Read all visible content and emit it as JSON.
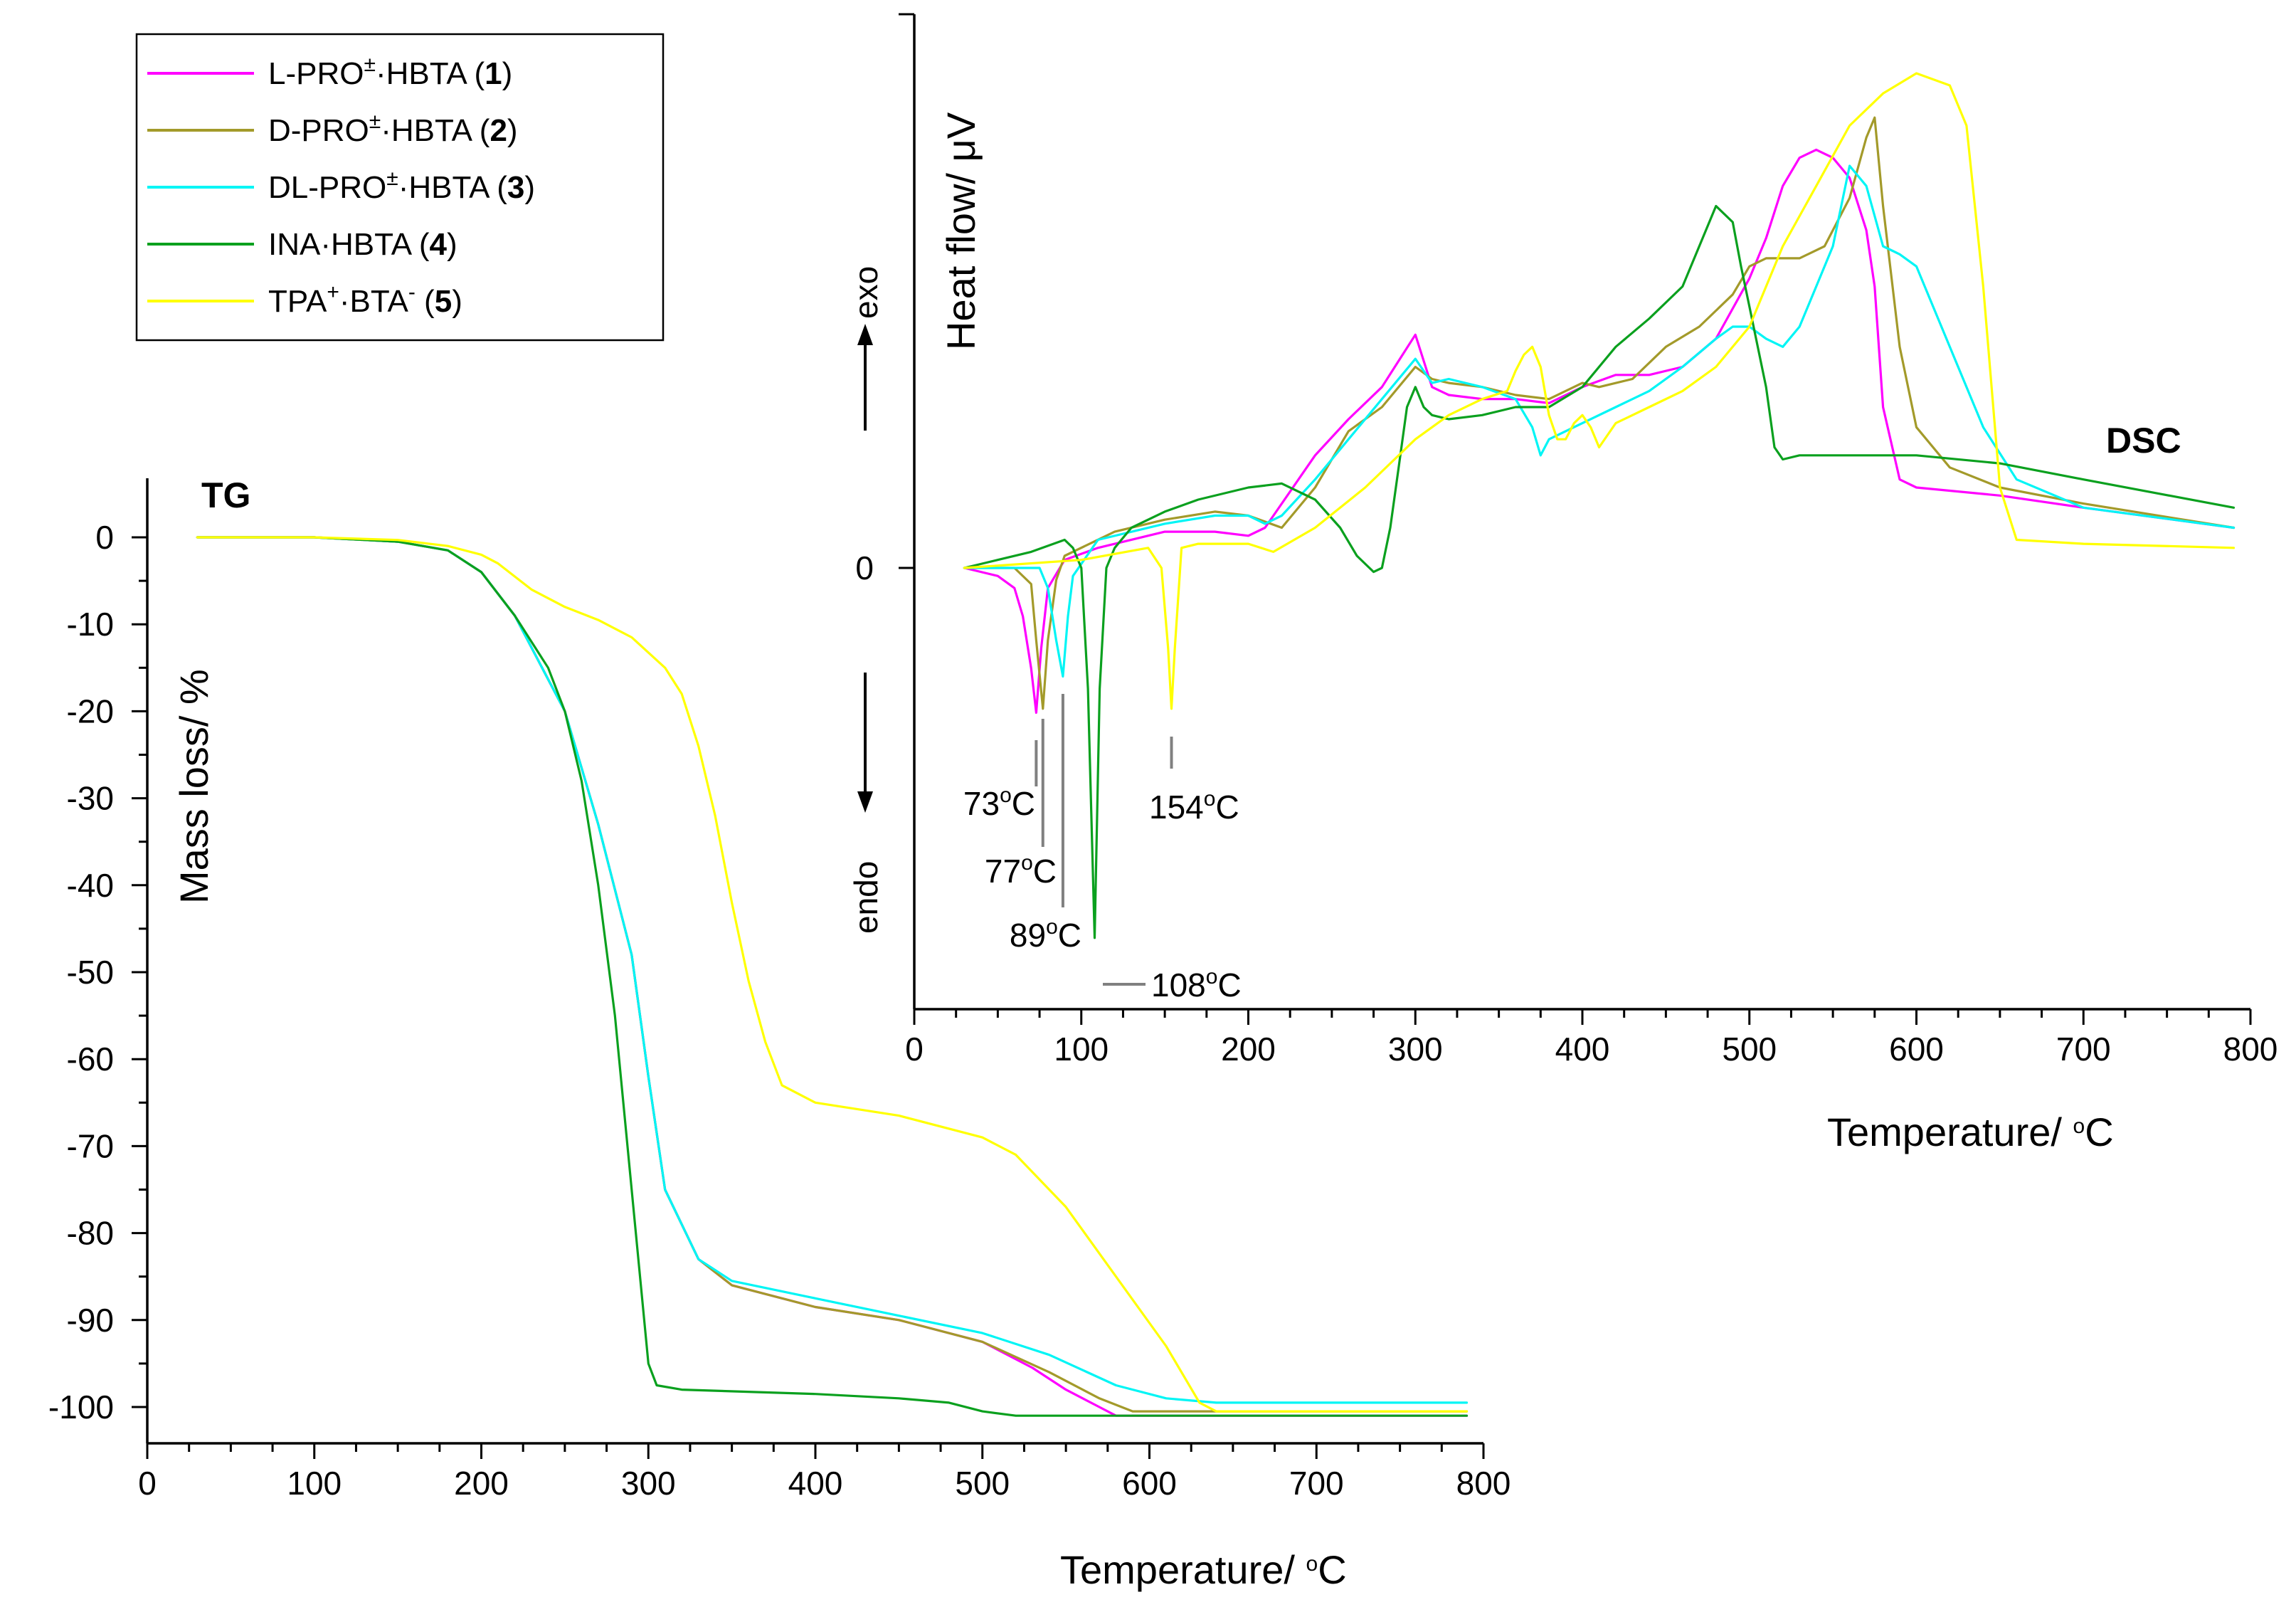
{
  "legend": {
    "entries": [
      {
        "prefix": "L-PRO",
        "sup": "±",
        "mid": "·HBTA (",
        "num": "1",
        "suffix": ")",
        "color": "#ff00ff"
      },
      {
        "prefix": "D-PRO",
        "sup": "±",
        "mid": "·HBTA (",
        "num": "2",
        "suffix": ")",
        "color": "#a39a2a"
      },
      {
        "prefix": "DL-PRO",
        "sup": "±",
        "mid": "·HBTA (",
        "num": "3",
        "suffix": ")",
        "color": "#00f5f5"
      },
      {
        "prefix": "INA",
        "sup": "",
        "mid": "·HBTA (",
        "num": "4",
        "suffix": ")",
        "color": "#0aa01e"
      },
      {
        "prefix": "TPA",
        "sup": "+",
        "mid": "·BTA",
        "sup2": "-",
        "tail": " (",
        "num": "5",
        "suffix": ")",
        "color": "#ffff00"
      }
    ]
  },
  "chart_data": [
    {
      "type": "line",
      "title": "TG",
      "xlabel_main": "Temperature/ ",
      "xlabel_sup": "o",
      "xlabel_tail": "C",
      "ylabel": "Mass loss/ %",
      "xlim": [
        0,
        800
      ],
      "ylim": [
        -105,
        5
      ],
      "xticks": [
        0,
        100,
        200,
        300,
        400,
        500,
        600,
        700,
        800
      ],
      "yticks": [
        0,
        -10,
        -20,
        -30,
        -40,
        -50,
        -60,
        -70,
        -80,
        -90,
        -100
      ],
      "series": [
        {
          "name": "L-PRO±·HBTA (1)",
          "color": "#ff00ff",
          "x": [
            30,
            100,
            150,
            180,
            200,
            220,
            250,
            270,
            290,
            300,
            310,
            330,
            350,
            400,
            450,
            500,
            530,
            550,
            570,
            580,
            790
          ],
          "y": [
            0,
            0,
            -0.5,
            -1.5,
            -4,
            -9,
            -20,
            -33,
            -48,
            -62,
            -75,
            -83,
            -86,
            -88.5,
            -90,
            -92.5,
            -95.5,
            -98,
            -100,
            -101,
            -101
          ]
        },
        {
          "name": "D-PRO±·HBTA (2)",
          "color": "#a39a2a",
          "x": [
            30,
            100,
            150,
            180,
            200,
            220,
            250,
            270,
            290,
            300,
            310,
            330,
            350,
            400,
            450,
            500,
            540,
            570,
            590,
            600,
            790
          ],
          "y": [
            0,
            0,
            -0.5,
            -1.5,
            -4,
            -9,
            -20,
            -33,
            -48,
            -62,
            -75,
            -83,
            -86,
            -88.5,
            -90,
            -92.5,
            -96,
            -99,
            -100.5,
            -100.5,
            -100.5
          ]
        },
        {
          "name": "DL-PRO±·HBTA (3)",
          "color": "#00f5f5",
          "x": [
            30,
            100,
            150,
            180,
            200,
            220,
            250,
            270,
            290,
            300,
            310,
            330,
            350,
            400,
            450,
            500,
            540,
            580,
            610,
            640,
            790
          ],
          "y": [
            0,
            0,
            -0.5,
            -1.5,
            -4,
            -9,
            -20,
            -33,
            -48,
            -62,
            -75,
            -83,
            -85.5,
            -87.5,
            -89.5,
            -91.5,
            -94,
            -97.5,
            -99,
            -99.5,
            -99.5
          ]
        },
        {
          "name": "INA·HBTA (4)",
          "color": "#0aa01e",
          "x": [
            30,
            100,
            150,
            180,
            200,
            220,
            240,
            250,
            260,
            270,
            280,
            290,
            300,
            305,
            320,
            400,
            450,
            480,
            500,
            520,
            790
          ],
          "y": [
            0,
            0,
            -0.5,
            -1.5,
            -4,
            -9,
            -15,
            -20,
            -28,
            -40,
            -55,
            -75,
            -95,
            -97.5,
            -98,
            -98.5,
            -99,
            -99.5,
            -100.5,
            -101,
            -101
          ]
        },
        {
          "name": "TPA+·BTA- (5)",
          "color": "#ffff00",
          "x": [
            30,
            100,
            150,
            180,
            200,
            210,
            230,
            250,
            270,
            290,
            310,
            320,
            330,
            340,
            350,
            360,
            370,
            380,
            400,
            450,
            500,
            520,
            550,
            580,
            610,
            630,
            640,
            790
          ],
          "y": [
            0,
            0,
            -0.3,
            -1,
            -2,
            -3,
            -6,
            -8,
            -9.5,
            -11.5,
            -15,
            -18,
            -24,
            -32,
            -42,
            -51,
            -58,
            -63,
            -65,
            -66.5,
            -69,
            -71,
            -77,
            -85,
            -93,
            -99.5,
            -100.5,
            -100.5
          ]
        }
      ]
    },
    {
      "type": "line",
      "title": "DSC",
      "xlabel_main": "Temperature/ ",
      "xlabel_sup": "o",
      "xlabel_tail": "C",
      "ylabel": "Heat flow/ μV",
      "xlim": [
        0,
        800
      ],
      "ylim": [
        -100,
        127
      ],
      "xticks": [
        0,
        100,
        200,
        300,
        400,
        500,
        600,
        700,
        800
      ],
      "ytick_label": "0",
      "exo_label": "exo",
      "endo_label": "endo",
      "annotations": [
        {
          "temp": 73,
          "label": "73",
          "sup": "o",
          "unit": "C"
        },
        {
          "temp": 77,
          "label": "77",
          "sup": "o",
          "unit": "C"
        },
        {
          "temp": 89,
          "label": "89",
          "sup": "o",
          "unit": "C"
        },
        {
          "temp": 108,
          "label": "108",
          "sup": "o",
          "unit": "C"
        },
        {
          "temp": 154,
          "label": "154",
          "sup": "o",
          "unit": "C"
        }
      ],
      "series": [
        {
          "name": "L-PRO±·HBTA (1)",
          "color": "#ff00ff",
          "x": [
            30,
            50,
            60,
            65,
            70,
            73,
            76,
            80,
            90,
            110,
            150,
            180,
            200,
            210,
            220,
            240,
            260,
            280,
            300,
            310,
            320,
            340,
            360,
            380,
            400,
            420,
            440,
            460,
            480,
            500,
            510,
            520,
            530,
            540,
            550,
            560,
            570,
            575,
            580,
            590,
            600,
            650,
            700,
            790
          ],
          "y": [
            0,
            -2,
            -5,
            -12,
            -25,
            -36,
            -20,
            -5,
            2,
            5,
            9,
            9,
            8,
            10,
            16,
            28,
            37,
            45,
            58,
            45,
            43,
            42,
            42,
            41,
            45,
            48,
            48,
            50,
            57,
            72,
            82,
            95,
            102,
            104,
            102,
            97,
            84,
            70,
            40,
            22,
            20,
            18,
            15,
            10
          ]
        },
        {
          "name": "D-PRO±·HBTA (2)",
          "color": "#a39a2a",
          "x": [
            30,
            60,
            70,
            73,
            77,
            80,
            85,
            90,
            120,
            150,
            180,
            200,
            220,
            240,
            260,
            280,
            300,
            310,
            320,
            340,
            360,
            380,
            400,
            410,
            430,
            450,
            470,
            490,
            500,
            510,
            530,
            545,
            560,
            570,
            575,
            580,
            590,
            600,
            620,
            650,
            700,
            790
          ],
          "y": [
            0,
            0,
            -4,
            -18,
            -35,
            -18,
            -3,
            3,
            9,
            12,
            14,
            13,
            10,
            20,
            34,
            40,
            50,
            47,
            46,
            45,
            43,
            42,
            46,
            45,
            47,
            55,
            60,
            68,
            75,
            77,
            77,
            80,
            92,
            107,
            112,
            90,
            55,
            35,
            25,
            20,
            16,
            10
          ]
        },
        {
          "name": "DL-PRO±·HBTA (3)",
          "color": "#00f5f5",
          "x": [
            30,
            60,
            75,
            80,
            85,
            89,
            92,
            95,
            110,
            150,
            180,
            200,
            210,
            220,
            240,
            260,
            280,
            300,
            310,
            320,
            340,
            360,
            370,
            375,
            380,
            400,
            420,
            440,
            460,
            480,
            490,
            500,
            510,
            520,
            530,
            540,
            550,
            560,
            570,
            580,
            590,
            600,
            620,
            640,
            660,
            700,
            790
          ],
          "y": [
            0,
            0,
            0,
            -5,
            -18,
            -27,
            -12,
            -2,
            7,
            11,
            13,
            13,
            11,
            13,
            22,
            32,
            42,
            52,
            46,
            47,
            45,
            42,
            35,
            28,
            32,
            36,
            40,
            44,
            50,
            57,
            60,
            60,
            57,
            55,
            60,
            70,
            80,
            100,
            95,
            80,
            78,
            75,
            55,
            35,
            22,
            15,
            10
          ]
        },
        {
          "name": "INA·HBTA (4)",
          "color": "#0aa01e",
          "x": [
            30,
            50,
            70,
            90,
            95,
            100,
            104,
            108,
            111,
            115,
            120,
            130,
            150,
            170,
            200,
            220,
            240,
            255,
            265,
            275,
            280,
            285,
            290,
            295,
            300,
            305,
            310,
            320,
            340,
            360,
            380,
            400,
            420,
            440,
            460,
            470,
            480,
            490,
            495,
            500,
            510,
            515,
            520,
            530,
            560,
            600,
            650,
            700,
            790
          ],
          "y": [
            0,
            2,
            4,
            7,
            5,
            0,
            -30,
            -92,
            -30,
            0,
            5,
            10,
            14,
            17,
            20,
            21,
            17,
            10,
            3,
            -1,
            0,
            10,
            25,
            40,
            45,
            40,
            38,
            37,
            38,
            40,
            40,
            45,
            55,
            62,
            70,
            80,
            90,
            86,
            75,
            65,
            45,
            30,
            27,
            28,
            28,
            28,
            26,
            22,
            15
          ]
        },
        {
          "name": "TPA+·BTA- (5)",
          "color": "#ffff00",
          "x": [
            30,
            100,
            140,
            148,
            152,
            154,
            156,
            160,
            170,
            200,
            215,
            240,
            270,
            300,
            320,
            340,
            355,
            360,
            365,
            370,
            375,
            380,
            385,
            390,
            395,
            400,
            405,
            410,
            420,
            440,
            460,
            480,
            500,
            520,
            540,
            560,
            580,
            600,
            620,
            630,
            640,
            650,
            660,
            700,
            790
          ],
          "y": [
            0,
            2,
            5,
            0,
            -20,
            -35,
            -20,
            5,
            6,
            6,
            4,
            10,
            20,
            32,
            38,
            42,
            44,
            49,
            53,
            55,
            50,
            38,
            32,
            32,
            36,
            38,
            35,
            30,
            36,
            40,
            44,
            50,
            60,
            80,
            95,
            110,
            118,
            123,
            120,
            110,
            70,
            20,
            7,
            6,
            5
          ]
        }
      ]
    }
  ]
}
